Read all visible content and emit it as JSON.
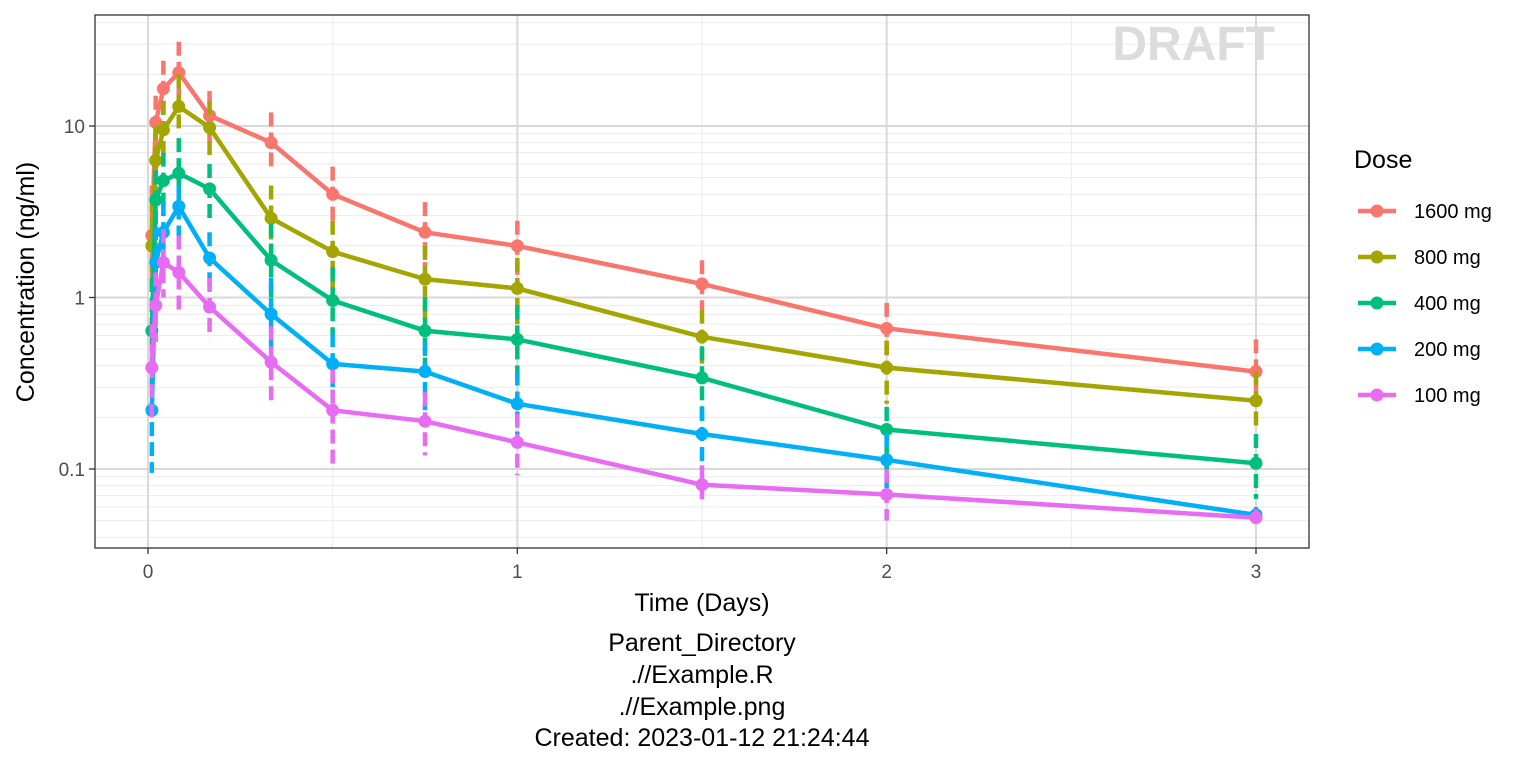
{
  "chart_data": {
    "type": "line",
    "xlabel": "Time (Days)",
    "ylabel": "Concentration (ng/ml)",
    "y_scale": "log",
    "ylim": [
      0.04,
      40
    ],
    "xlim": [
      -0.14,
      3.14
    ],
    "x_ticks": [
      0,
      1,
      2,
      3
    ],
    "x_tick_labels": [
      "0",
      "1",
      "2",
      "3"
    ],
    "y_ticks": [
      0.1,
      1,
      10
    ],
    "y_tick_labels": [
      "0.1",
      "1",
      "10"
    ],
    "grid": true,
    "watermark": "DRAFT",
    "legend": {
      "title": "Dose",
      "placement": "right"
    },
    "x": [
      0.0104,
      0.0208,
      0.0417,
      0.0833,
      0.1667,
      0.3333,
      0.5,
      0.75,
      1,
      1.5,
      2,
      3
    ],
    "series": [
      {
        "name": "1600 mg",
        "color": "#F8766D",
        "values": [
          2.3,
          10.5,
          16.5,
          20.5,
          11.5,
          8.0,
          4.0,
          2.4,
          2.0,
          1.2,
          0.66,
          0.37
        ],
        "error_low": [
          1.2,
          7.0,
          11.0,
          14.0,
          8.0,
          5.5,
          2.8,
          1.5,
          1.3,
          0.85,
          0.46,
          0.24
        ],
        "error_high": [
          4.5,
          15.0,
          24.0,
          31.0,
          16.0,
          12.0,
          5.8,
          3.6,
          2.8,
          1.65,
          0.93,
          0.57
        ]
      },
      {
        "name": "800 mg",
        "color": "#A3A500",
        "values": [
          2.0,
          6.3,
          9.5,
          13.0,
          9.8,
          2.9,
          1.85,
          1.28,
          1.13,
          0.59,
          0.39,
          0.25
        ],
        "error_low": [
          1.0,
          3.5,
          6.5,
          9.0,
          6.3,
          1.6,
          1.1,
          0.75,
          0.7,
          0.35,
          0.24,
          0.17
        ],
        "error_high": [
          3.8,
          10.0,
          14.0,
          20.0,
          14.0,
          4.5,
          2.8,
          2.0,
          1.7,
          0.85,
          0.56,
          0.37
        ]
      },
      {
        "name": "400 mg",
        "color": "#00BF7D",
        "values": [
          0.64,
          3.7,
          4.8,
          5.3,
          4.3,
          1.65,
          0.96,
          0.64,
          0.57,
          0.34,
          0.17,
          0.108
        ],
        "error_low": [
          0.3,
          2.2,
          3.0,
          3.5,
          2.8,
          0.9,
          0.6,
          0.38,
          0.32,
          0.19,
          0.1,
          0.067
        ],
        "error_high": [
          1.3,
          5.5,
          7.0,
          8.5,
          6.0,
          2.7,
          1.5,
          1.0,
          0.9,
          0.52,
          0.23,
          0.16
        ]
      },
      {
        "name": "200 mg",
        "color": "#00B0F6",
        "values": [
          0.22,
          1.6,
          2.4,
          3.4,
          1.7,
          0.8,
          0.41,
          0.37,
          0.24,
          0.16,
          0.113,
          0.054
        ],
        "error_low": [
          0.095,
          0.95,
          1.5,
          2.3,
          1.1,
          0.5,
          0.27,
          0.22,
          0.15,
          0.1,
          0.07,
          0.048
        ],
        "error_high": [
          0.42,
          2.6,
          3.6,
          4.5,
          2.4,
          1.3,
          0.62,
          0.55,
          0.37,
          0.23,
          0.16,
          0.06
        ]
      },
      {
        "name": "100 mg",
        "color": "#E76BF3",
        "values": [
          0.39,
          0.9,
          1.6,
          1.4,
          0.88,
          0.42,
          0.22,
          0.19,
          0.143,
          0.081,
          0.071,
          0.052
        ],
        "error_low": [
          0.2,
          0.55,
          1.0,
          0.85,
          0.58,
          0.25,
          0.105,
          0.12,
          0.092,
          0.062,
          0.05,
          0.047
        ],
        "error_high": [
          0.7,
          1.4,
          2.5,
          2.3,
          1.3,
          0.68,
          0.38,
          0.28,
          0.21,
          0.105,
          0.1,
          0.058
        ]
      }
    ]
  },
  "caption": {
    "line1": "Parent_Directory",
    "line2": ".//Example.R",
    "line3": ".//Example.png",
    "line4": "Created: 2023-01-12 21:24:44"
  }
}
